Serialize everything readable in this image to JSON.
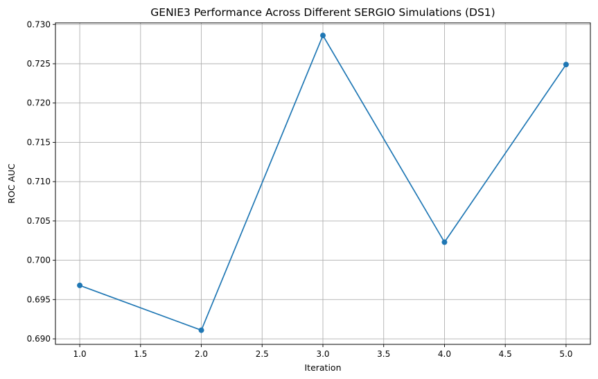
{
  "chart_data": {
    "type": "line",
    "title": "GENIE3 Performance Across Different SERGIO Simulations (DS1)",
    "xlabel": "Iteration",
    "ylabel": "ROC AUC",
    "xlim": [
      0.8,
      5.2
    ],
    "ylim": [
      0.6893,
      0.7302
    ],
    "xticks": [
      "1.0",
      "1.5",
      "2.0",
      "2.5",
      "3.0",
      "3.5",
      "4.0",
      "4.5",
      "5.0"
    ],
    "yticks": [
      "0.690",
      "0.695",
      "0.700",
      "0.705",
      "0.710",
      "0.715",
      "0.720",
      "0.725",
      "0.730"
    ],
    "grid": true,
    "marker": "circle",
    "series": [
      {
        "color": "#1f77b4",
        "x": [
          1,
          2,
          3,
          4,
          5
        ],
        "y": [
          0.6968,
          0.6911,
          0.7286,
          0.7023,
          0.7249
        ]
      }
    ]
  }
}
